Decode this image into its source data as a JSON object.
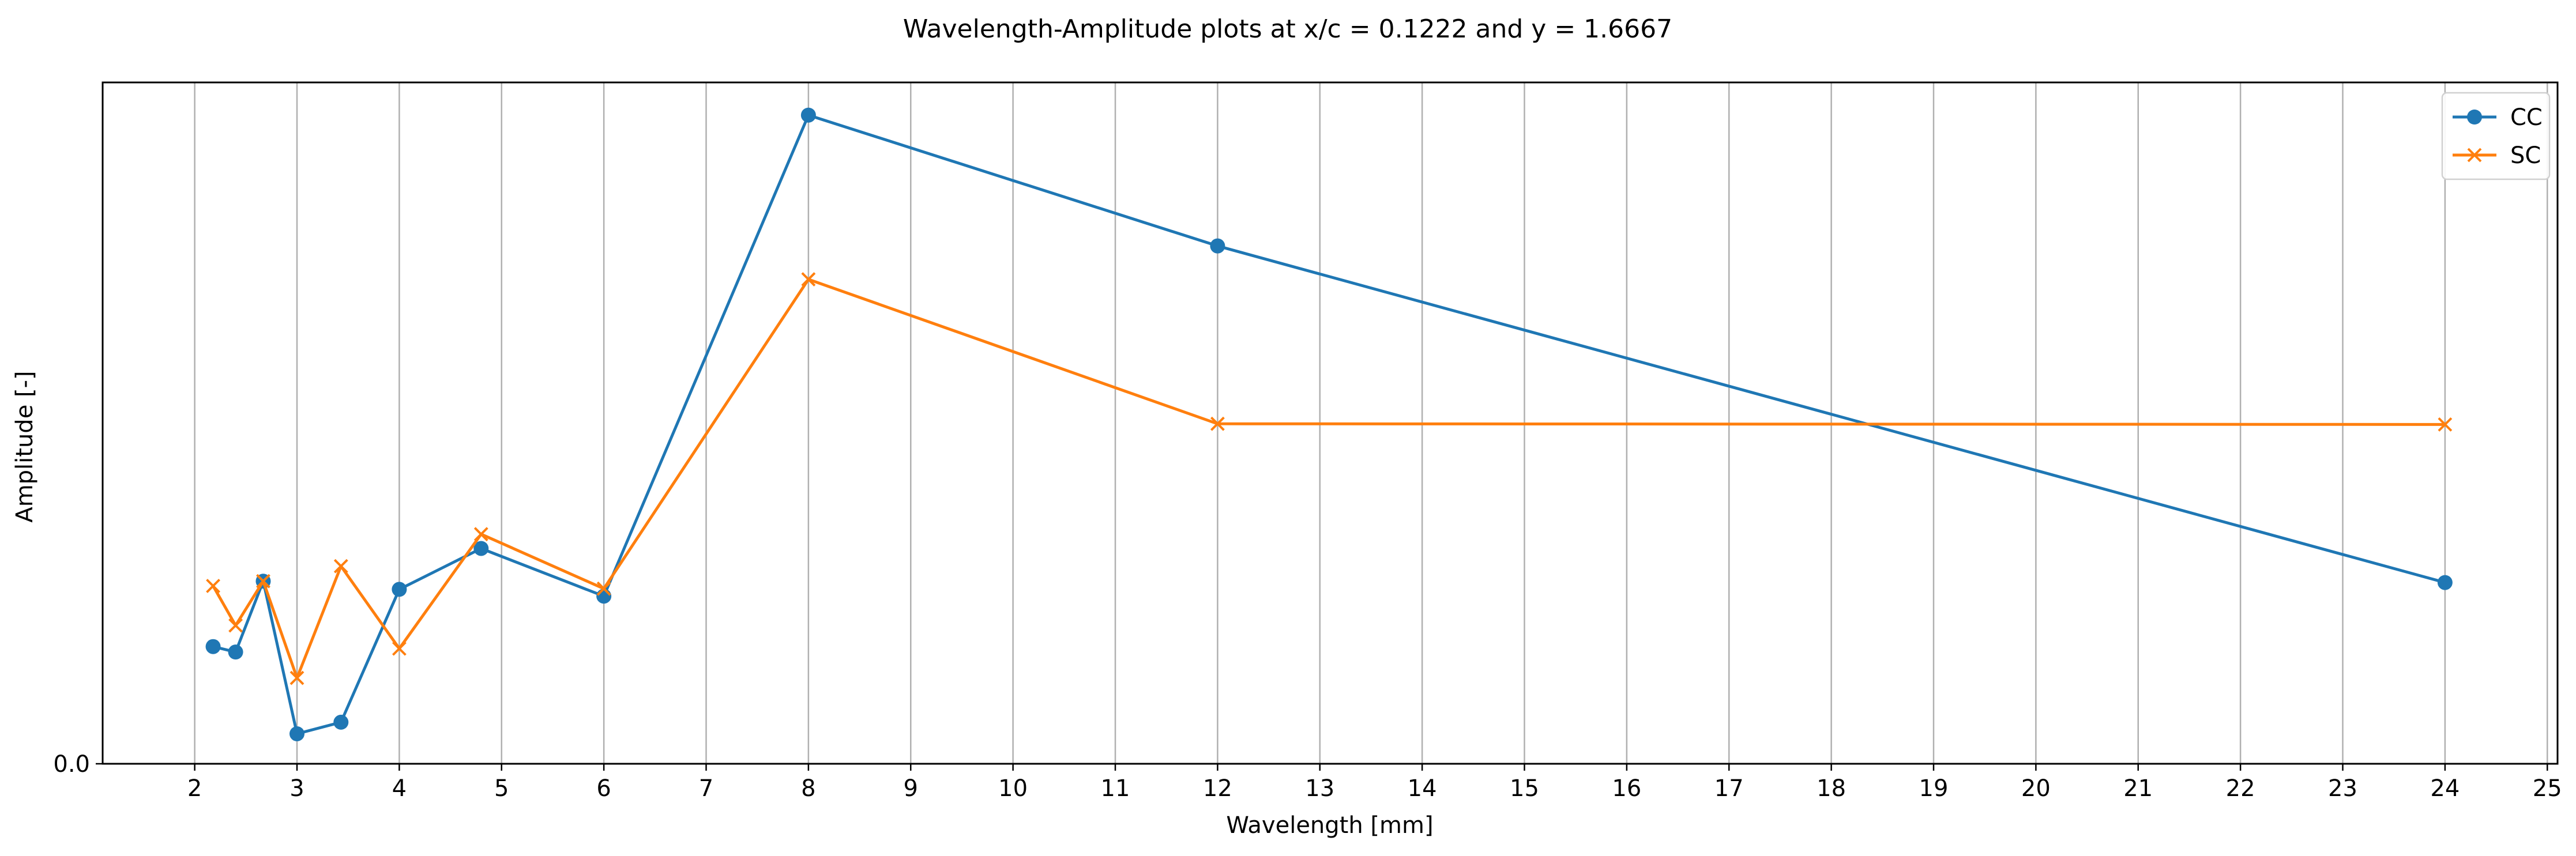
{
  "chart_data": {
    "type": "line",
    "title": "Wavelength-Amplitude plots at x/c = 0.1222 and y = 1.6667",
    "xlabel": "Wavelength [mm]",
    "ylabel": "Amplitude [-]",
    "xlim": [
      1.1,
      25.1
    ],
    "ylim": [
      0.0,
      1.0
    ],
    "xticks": [
      2,
      3,
      4,
      5,
      6,
      7,
      8,
      9,
      10,
      11,
      12,
      13,
      14,
      15,
      16,
      17,
      18,
      19,
      20,
      21,
      22,
      23,
      24,
      25
    ],
    "yticks": [
      0.0
    ],
    "ytick_labels": [
      "0.0"
    ],
    "grid": "x",
    "legend": "top-right",
    "series": [
      {
        "name": "CC",
        "marker": "circle",
        "color": "#1f77b4",
        "x": [
          2.18,
          2.4,
          2.67,
          3.0,
          3.43,
          4.0,
          4.8,
          6.0,
          8.0,
          12.0,
          24.0
        ],
        "y": [
          0.172,
          0.164,
          0.268,
          0.044,
          0.061,
          0.256,
          0.316,
          0.246,
          0.952,
          0.76,
          0.266
        ]
      },
      {
        "name": "SC",
        "marker": "x",
        "color": "#ff7f0e",
        "x": [
          2.18,
          2.4,
          2.67,
          3.0,
          3.43,
          4.0,
          4.8,
          6.0,
          8.0,
          12.0,
          24.0
        ],
        "y": [
          0.261,
          0.203,
          0.268,
          0.126,
          0.29,
          0.169,
          0.337,
          0.257,
          0.711,
          0.499,
          0.498
        ]
      }
    ]
  }
}
